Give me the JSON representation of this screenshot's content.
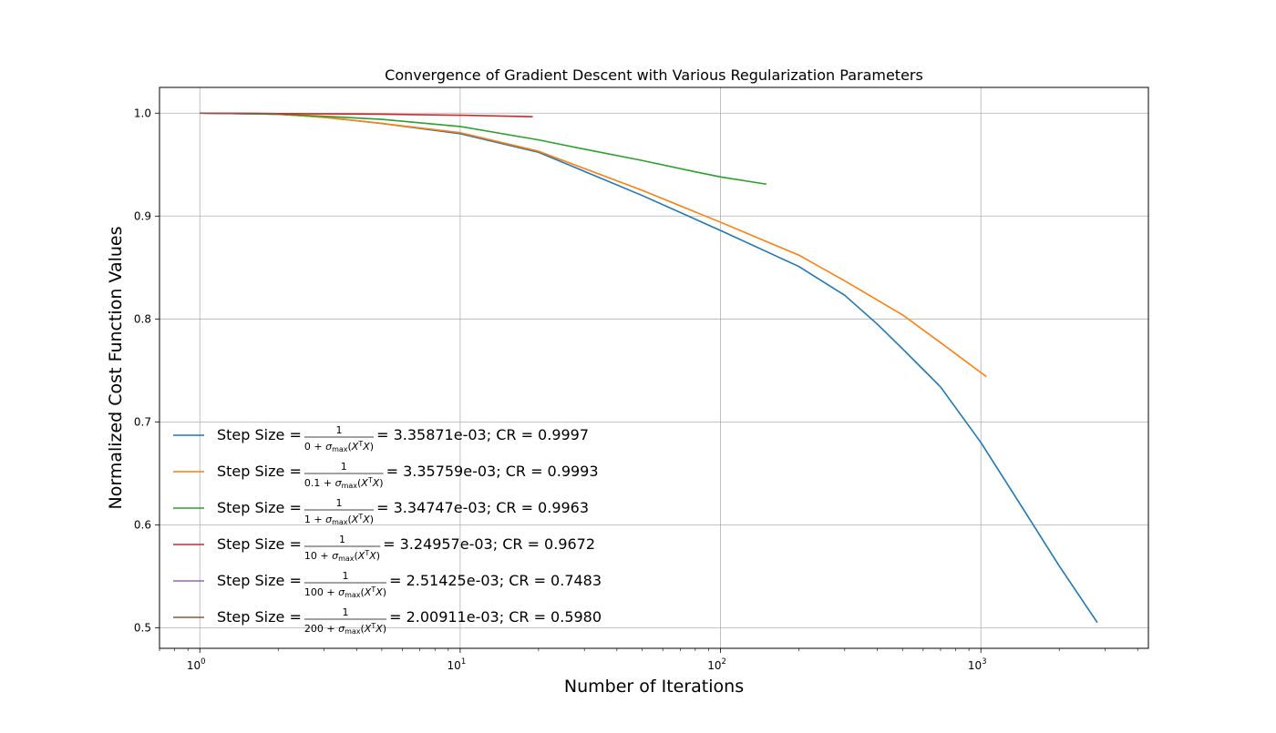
{
  "chart_data": {
    "type": "line",
    "title": "Convergence of Gradient Descent with Various Regularization Parameters",
    "xlabel": "Number of Iterations",
    "ylabel": "Normalized Cost Function Values",
    "xscale": "log",
    "xlim": [
      0.7,
      4400
    ],
    "ylim": [
      0.48,
      1.025
    ],
    "x_ticks": [
      {
        "value": 1,
        "base": "10",
        "exp": "0"
      },
      {
        "value": 10,
        "base": "10",
        "exp": "1"
      },
      {
        "value": 100,
        "base": "10",
        "exp": "2"
      },
      {
        "value": 1000,
        "base": "10",
        "exp": "3"
      }
    ],
    "y_ticks": [
      {
        "value": 0.5,
        "label": "0.5"
      },
      {
        "value": 0.6,
        "label": "0.6"
      },
      {
        "value": 0.7,
        "label": "0.7"
      },
      {
        "value": 0.8,
        "label": "0.8"
      },
      {
        "value": 0.9,
        "label": "0.9"
      },
      {
        "value": 1.0,
        "label": "1.0"
      }
    ],
    "grid": true,
    "legend_position": "lower-left",
    "series": [
      {
        "name": "Step Size = 1/(0 + σmax(XᵀX)) = 3.35871e-03; CR = 0.9997",
        "legend": {
          "prefix": "Step Size = ",
          "numerator": "1",
          "denom_const": "0 + ",
          "suffix": " = 3.35871e-03; CR = 0.9997"
        },
        "color": "#1f77b4",
        "points": [
          [
            1,
            1.0
          ],
          [
            2,
            0.999
          ],
          [
            3,
            0.996
          ],
          [
            5,
            0.99
          ],
          [
            10,
            0.98
          ],
          [
            20,
            0.962
          ],
          [
            50,
            0.92
          ],
          [
            100,
            0.886
          ],
          [
            200,
            0.851
          ],
          [
            300,
            0.823
          ],
          [
            400,
            0.795
          ],
          [
            500,
            0.771
          ],
          [
            700,
            0.734
          ],
          [
            1000,
            0.68
          ],
          [
            1500,
            0.61
          ],
          [
            2000,
            0.56
          ],
          [
            2800,
            0.505
          ]
        ]
      },
      {
        "name": "Step Size = 1/(0.1 + σmax(XᵀX)) = 3.35759e-03; CR = 0.9993",
        "legend": {
          "prefix": "Step Size = ",
          "numerator": "1",
          "denom_const": "0.1 + ",
          "suffix": " = 3.35759e-03; CR = 0.9993"
        },
        "color": "#ff7f0e",
        "points": [
          [
            1,
            1.0
          ],
          [
            2,
            0.999
          ],
          [
            3,
            0.996
          ],
          [
            5,
            0.99
          ],
          [
            10,
            0.981
          ],
          [
            20,
            0.963
          ],
          [
            50,
            0.925
          ],
          [
            100,
            0.894
          ],
          [
            200,
            0.862
          ],
          [
            300,
            0.837
          ],
          [
            500,
            0.804
          ],
          [
            700,
            0.777
          ],
          [
            1050,
            0.744
          ]
        ]
      },
      {
        "name": "Step Size = 1/(1 + σmax(XᵀX)) = 3.34747e-03; CR = 0.9963",
        "legend": {
          "prefix": "Step Size = ",
          "numerator": "1",
          "denom_const": "1 + ",
          "suffix": " = 3.34747e-03; CR = 0.9963"
        },
        "color": "#2ca02c",
        "points": [
          [
            1,
            1.0
          ],
          [
            2,
            0.999
          ],
          [
            3,
            0.997
          ],
          [
            5,
            0.994
          ],
          [
            10,
            0.987
          ],
          [
            20,
            0.974
          ],
          [
            30,
            0.965
          ],
          [
            50,
            0.954
          ],
          [
            80,
            0.943
          ],
          [
            100,
            0.938
          ],
          [
            150,
            0.931
          ]
        ]
      },
      {
        "name": "Step Size = 1/(10 + σmax(XᵀX)) = 3.24957e-03; CR = 0.9672",
        "legend": {
          "prefix": "Step Size = ",
          "numerator": "1",
          "denom_const": "10 + ",
          "suffix": " = 3.24957e-03; CR = 0.9672"
        },
        "color": "#d62728",
        "points": [
          [
            1,
            1.0
          ],
          [
            2,
            0.9995
          ],
          [
            5,
            0.999
          ],
          [
            10,
            0.998
          ],
          [
            19,
            0.9965
          ]
        ]
      },
      {
        "name": "Step Size = 1/(100 + σmax(XᵀX)) = 2.51425e-03; CR = 0.7483",
        "legend": {
          "prefix": "Step Size = ",
          "numerator": "1",
          "denom_const": "100 + ",
          "suffix": " = 2.51425e-03; CR = 0.7483"
        },
        "color": "#9467bd",
        "points": [
          [
            1,
            1.0
          ],
          [
            2,
            0.9995
          ]
        ]
      },
      {
        "name": "Step Size = 1/(200 + σmax(XᵀX)) = 2.00911e-03; CR = 0.5980",
        "legend": {
          "prefix": "Step Size = ",
          "numerator": "1",
          "denom_const": "200 + ",
          "suffix": " = 2.00911e-03; CR = 0.5980"
        },
        "color": "#8c564b",
        "points": [
          [
            1,
            1.0
          ],
          [
            2,
            0.9995
          ]
        ]
      }
    ]
  }
}
